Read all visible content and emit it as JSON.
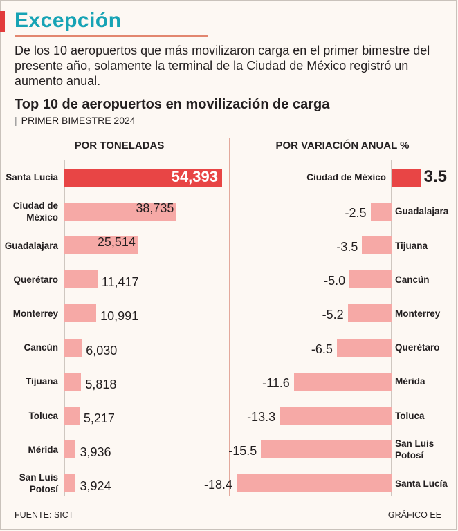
{
  "header": {
    "title": "Excepción",
    "lede": "De los 10 aeropuertos que más movilizaron carga en el primer bimestre del presente año, solamente la terminal de la Ciudad de México registró un aumento anual."
  },
  "colors": {
    "accent": "#e23b3b",
    "title": "#17a3b5",
    "bar": "#f6a9a6",
    "highlight": "#e84545"
  },
  "chart_data": [
    {
      "type": "bar",
      "orientation": "horizontal",
      "title": "Top 10 de aeropuertos en movilización de carga",
      "subtitle": "PRIMER BIMESTRE 2024",
      "column_title": "POR TONELADAS",
      "unit": "toneladas",
      "xlim": [
        0,
        54393
      ],
      "highlight": "Santa Lucía",
      "categories": [
        "Santa Lucía",
        "Ciudad de México",
        "Guadalajara",
        "Querétaro",
        "Monterrey",
        "Cancún",
        "Tijuana",
        "Toluca",
        "Mérida",
        "San Luis Potosí"
      ],
      "labels": [
        "Santa Lucía",
        "Ciudad de\nMéxico",
        "Guadalajara",
        "Querétaro",
        "Monterrey",
        "Cancún",
        "Tijuana",
        "Toluca",
        "Mérida",
        "San Luis\nPotosí"
      ],
      "values": [
        54393,
        38735,
        25514,
        11417,
        10991,
        6030,
        5818,
        5217,
        3936,
        3924
      ],
      "value_labels": [
        "54,393",
        "38,735",
        "25,514",
        "11,417",
        "10,991",
        "6,030",
        "5,818",
        "5,217",
        "3,936",
        "3,924"
      ]
    },
    {
      "type": "bar",
      "orientation": "horizontal",
      "column_title": "POR VARIACIÓN ANUAL %",
      "unit": "%",
      "xlim": [
        -18.4,
        3.5
      ],
      "highlight": "Ciudad de México",
      "categories": [
        "Ciudad de México",
        "Guadalajara",
        "Tijuana",
        "Cancún",
        "Monterrey",
        "Querétaro",
        "Mérida",
        "Toluca",
        "San Luis Potosí",
        "Santa Lucía"
      ],
      "labels": [
        "Ciudad de México",
        "Guadalajara",
        "Tijuana",
        "Cancún",
        "Monterrey",
        "Querétaro",
        "Mérida",
        "Toluca",
        "San Luis\nPotosí",
        "Santa Lucía"
      ],
      "values": [
        3.5,
        -2.5,
        -3.5,
        -5.0,
        -5.2,
        -6.5,
        -11.6,
        -13.3,
        -15.5,
        -18.4
      ],
      "value_labels": [
        "3.5",
        "-2.5",
        "-3.5",
        "-5.0",
        "-5.2",
        "-6.5",
        "-11.6",
        "-13.3",
        "-15.5",
        "-18.4"
      ]
    }
  ],
  "footer": {
    "source": "FUENTE: SICT",
    "credit": "GRÁFICO EE"
  }
}
